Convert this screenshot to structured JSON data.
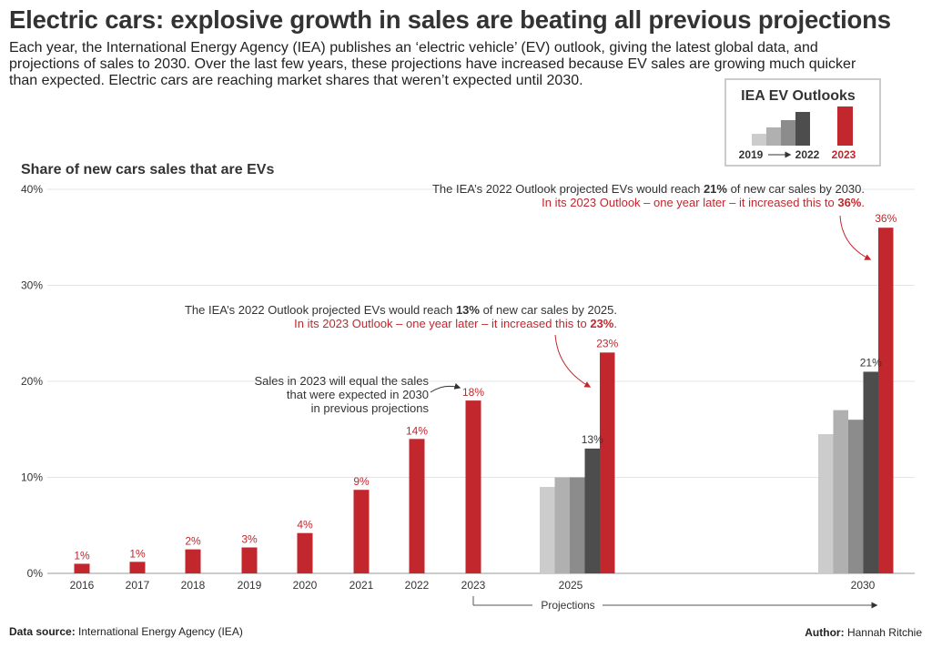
{
  "title": "Electric cars: explosive growth in sales are beating all previous projections",
  "intro": [
    "Each year, the International Energy Agency (IEA) publishes an ‘electric vehicle’ (EV) outlook, giving the latest global data, and",
    "projections of sales to 2030. Over the last few years, these projections have increased because EV sales are growing much quicker",
    "than expected. Electric cars are reaching market shares that weren’t expected until 2030."
  ],
  "source_label": "Data source:",
  "source_text": "International Energy Agency (IEA)",
  "author_label": "Author:",
  "author_text": "Hannah Ritchie",
  "colors": {
    "red": "#c1272d",
    "grays": [
      "#cccccc",
      "#b0b0b0",
      "#8c8c8c",
      "#4d4d4d"
    ],
    "text": "#333333",
    "grid": "#e4e4e4"
  },
  "legend": {
    "title": "IEA EV Outlooks",
    "from": "2019",
    "to": "2022",
    "latest": "2023"
  },
  "chart_data": {
    "type": "bar",
    "title": "Share of new cars sales that are EVs",
    "ylim": [
      0,
      40
    ],
    "yticks": [
      "0%",
      "10%",
      "20%",
      "30%",
      "40%"
    ],
    "grid": true,
    "historical": {
      "categories": [
        "2016",
        "2017",
        "2018",
        "2019",
        "2020",
        "2021",
        "2022",
        "2023"
      ],
      "values": [
        1,
        1.2,
        2.5,
        2.7,
        4.2,
        8.7,
        14,
        18
      ],
      "labels": [
        "1%",
        "1%",
        "2%",
        "3%",
        "4%",
        "9%",
        "14%",
        "18%"
      ]
    },
    "projections": [
      {
        "category": "2025",
        "series": [
          {
            "name": "2019",
            "value": 9
          },
          {
            "name": "2020",
            "value": 10
          },
          {
            "name": "2021",
            "value": 10
          },
          {
            "name": "2022",
            "value": 13,
            "label": "13%"
          },
          {
            "name": "2023",
            "value": 23,
            "label": "23%"
          }
        ]
      },
      {
        "category": "2030",
        "series": [
          {
            "name": "2019",
            "value": 14.5
          },
          {
            "name": "2020",
            "value": 17
          },
          {
            "name": "2021",
            "value": 16
          },
          {
            "name": "2022",
            "value": 21,
            "label": "21%"
          },
          {
            "name": "2023",
            "value": 36,
            "label": "36%"
          }
        ]
      }
    ],
    "projections_label": "Projections",
    "annotations": {
      "sales2023": [
        "Sales in 2023 will  equal the sales",
        "that were expected in 2030",
        "in previous projections"
      ],
      "y2025": {
        "line1": [
          "The IEA’s 2022 Outlook projected EVs would reach ",
          "13%",
          " of new car sales by 2025."
        ],
        "line2": [
          "In its 2023 Outlook – one year later – it increased this to ",
          "23%",
          "."
        ]
      },
      "y2030": {
        "line1": [
          "The IEA’s 2022 Outlook projected EVs would reach ",
          "21%",
          " of new car sales by 2030."
        ],
        "line2": [
          "In its 2023 Outlook – one year later – it increased this to ",
          "36%",
          "."
        ]
      }
    }
  }
}
